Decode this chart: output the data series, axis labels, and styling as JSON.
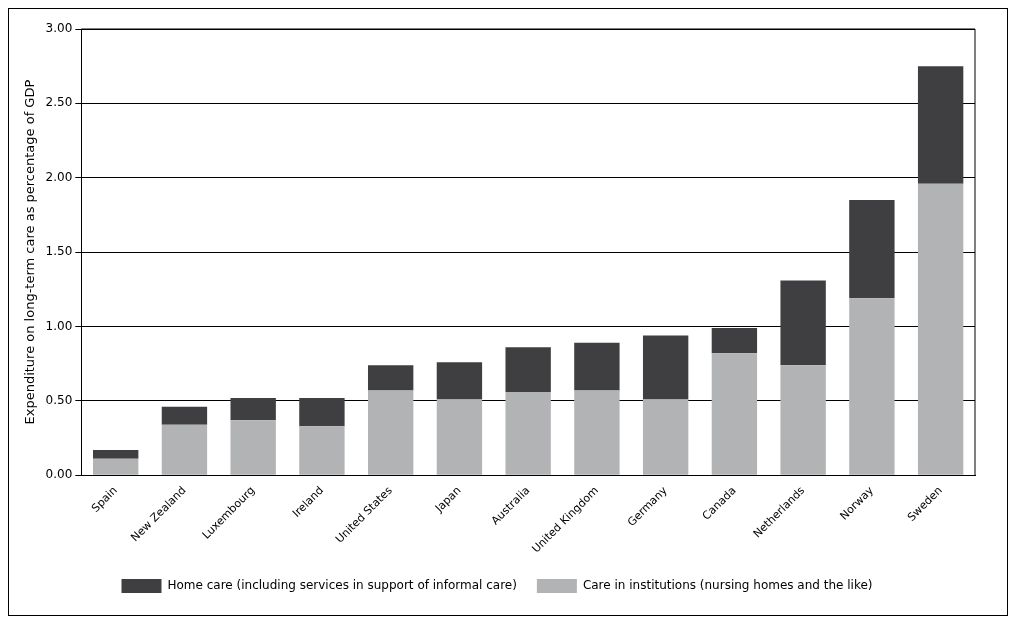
{
  "chart_data": {
    "type": "bar",
    "stacked": true,
    "ylabel": "Expenditure on long-term care as percentage of GDP",
    "categories": [
      "Spain",
      "New Zealand",
      "Luxembourg",
      "Ireland",
      "United States",
      "Japan",
      "Australia",
      "United Kingdom",
      "Germany",
      "Canada",
      "Netherlands",
      "Norway",
      "Sweden"
    ],
    "series": [
      {
        "name": "Care in institutions (nursing homes and the like)",
        "color": "#b2b3b5",
        "values": [
          0.11,
          0.34,
          0.37,
          0.33,
          0.57,
          0.51,
          0.56,
          0.57,
          0.51,
          0.82,
          0.74,
          1.19,
          1.96
        ]
      },
      {
        "name": "Home care (including services in support of informal care)",
        "color": "#3f3f41",
        "values": [
          0.06,
          0.12,
          0.15,
          0.19,
          0.17,
          0.25,
          0.3,
          0.32,
          0.43,
          0.17,
          0.57,
          0.66,
          0.79
        ]
      }
    ],
    "ylim": [
      0,
      3
    ],
    "yticks": [
      {
        "value": 0,
        "label": "0.00"
      },
      {
        "value": 0.5,
        "label": "0.50"
      },
      {
        "value": 1,
        "label": "1.00"
      },
      {
        "value": 1.5,
        "label": "1.50"
      },
      {
        "value": 2,
        "label": "2.00"
      },
      {
        "value": 2.5,
        "label": "2.50"
      },
      {
        "value": 3,
        "label": "3.00"
      }
    ],
    "grid": "y",
    "legend": "bottom"
  }
}
